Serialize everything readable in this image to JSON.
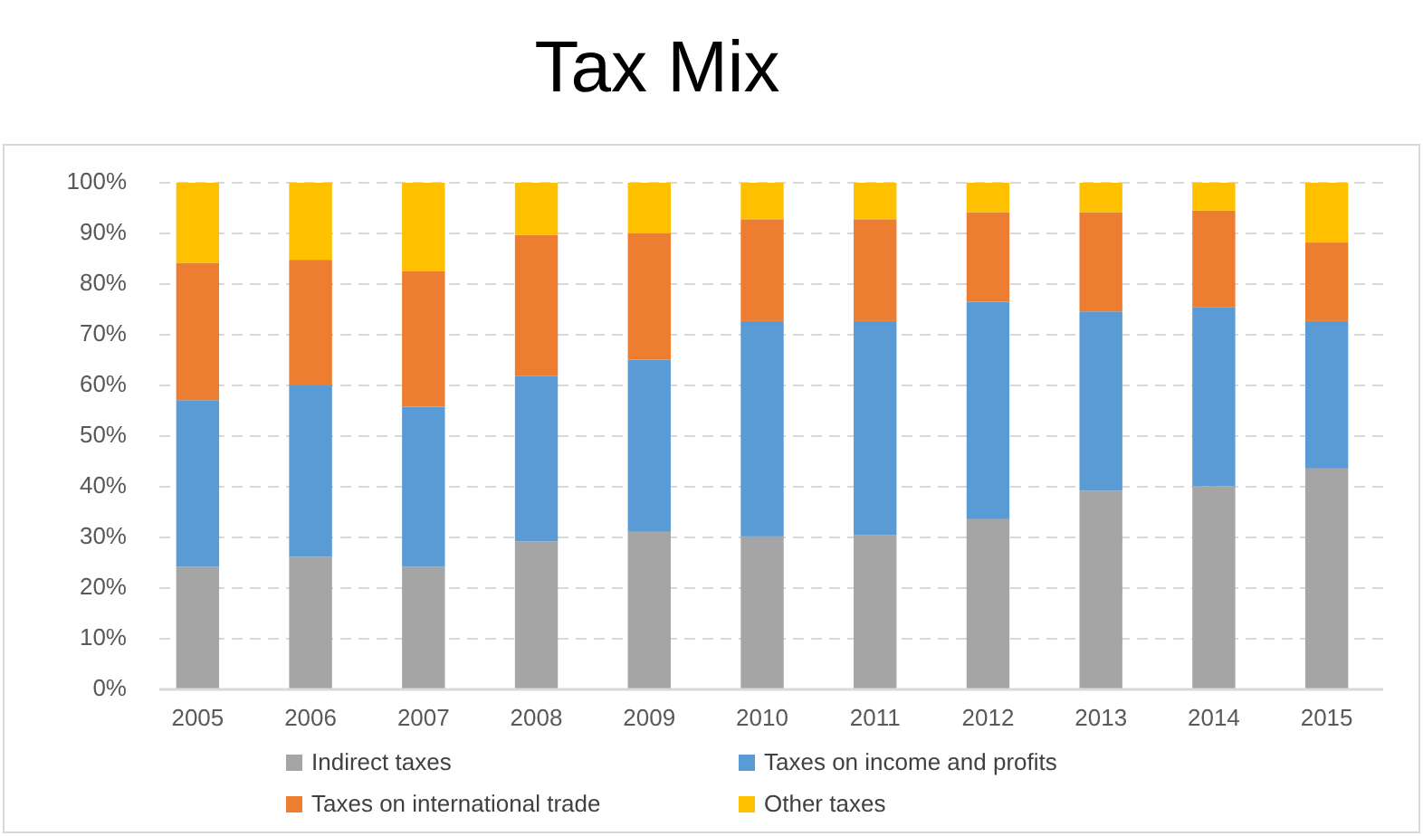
{
  "chart_data": {
    "type": "bar",
    "title": "Tax Mix",
    "stacked": true,
    "categories": [
      "2005",
      "2006",
      "2007",
      "2008",
      "2009",
      "2010",
      "2011",
      "2012",
      "2013",
      "2014",
      "2015"
    ],
    "series": [
      {
        "name": "Indirect taxes",
        "color": "#a5a5a5",
        "values": [
          24.2,
          26.2,
          24.2,
          29.2,
          31.1,
          30.2,
          30.5,
          33.6,
          39.2,
          40.1,
          43.6
        ]
      },
      {
        "name": "Taxes on income and profits",
        "color": "#5b9bd5",
        "values": [
          32.9,
          33.8,
          31.6,
          32.7,
          34.0,
          42.5,
          42.2,
          42.9,
          35.4,
          35.3,
          29.1
        ]
      },
      {
        "name": "Taxes on international trade",
        "color": "#ed7d31",
        "values": [
          27.1,
          24.8,
          26.7,
          27.8,
          24.9,
          20.1,
          20.1,
          17.7,
          19.6,
          19.1,
          15.5
        ]
      },
      {
        "name": "Other taxes",
        "color": "#ffc000",
        "values": [
          15.8,
          15.2,
          17.5,
          10.3,
          10.0,
          7.2,
          7.2,
          5.8,
          5.8,
          5.5,
          11.8
        ]
      }
    ],
    "ylim": [
      0,
      100
    ],
    "yticks": [
      {
        "value": 0,
        "label": "0%"
      },
      {
        "value": 10,
        "label": "10%"
      },
      {
        "value": 20,
        "label": "20%"
      },
      {
        "value": 30,
        "label": "30%"
      },
      {
        "value": 40,
        "label": "40%"
      },
      {
        "value": 50,
        "label": "50%"
      },
      {
        "value": 60,
        "label": "60%"
      },
      {
        "value": 70,
        "label": "70%"
      },
      {
        "value": 80,
        "label": "80%"
      },
      {
        "value": 90,
        "label": "90%"
      },
      {
        "value": 100,
        "label": "100%"
      }
    ],
    "grid": "y",
    "legend": "bottom"
  }
}
